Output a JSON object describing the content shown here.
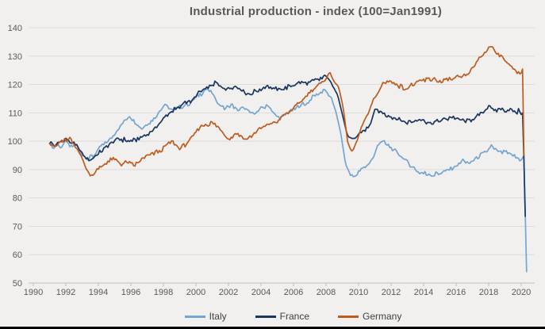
{
  "chart_data": {
    "type": "line",
    "title": "Industrial production - index (100=Jan1991)",
    "xlabel": "",
    "ylabel": "",
    "grid": "horizontal",
    "legend_position": "bottom",
    "x_axis": {
      "min": 1990,
      "max": 2020.6,
      "ticks": [
        1990,
        1992,
        1994,
        1996,
        1998,
        2000,
        2002,
        2004,
        2006,
        2008,
        2010,
        2012,
        2014,
        2016,
        2018,
        2020
      ]
    },
    "y_axis": {
      "min": 50,
      "max": 140,
      "ticks": [
        50,
        60,
        70,
        80,
        90,
        100,
        110,
        120,
        130,
        140
      ]
    },
    "series": [
      {
        "name": "Italy",
        "color": "#74a5d1",
        "points": [
          [
            1991.0,
            99.5
          ],
          [
            1991.25,
            97.3
          ],
          [
            1991.5,
            98.8
          ],
          [
            1991.75,
            97.8
          ],
          [
            1992.0,
            100.2
          ],
          [
            1992.3,
            97.8
          ],
          [
            1992.6,
            99.0
          ],
          [
            1993.0,
            95.2
          ],
          [
            1993.4,
            93.8
          ],
          [
            1993.8,
            95.5
          ],
          [
            1994.1,
            98.0
          ],
          [
            1994.5,
            99.5
          ],
          [
            1994.85,
            101.2
          ],
          [
            1995.3,
            105.0
          ],
          [
            1995.9,
            108.8
          ],
          [
            1996.3,
            106.3
          ],
          [
            1996.7,
            104.4
          ],
          [
            1997.2,
            106.8
          ],
          [
            1997.6,
            109.0
          ],
          [
            1997.9,
            111.8
          ],
          [
            1998.15,
            113.2
          ],
          [
            1998.45,
            110.7
          ],
          [
            1998.8,
            111.5
          ],
          [
            1999.25,
            112.5
          ],
          [
            1999.6,
            113.2
          ],
          [
            2000.0,
            115.5
          ],
          [
            2000.4,
            117.0
          ],
          [
            2000.65,
            118.4
          ],
          [
            2001.0,
            116.8
          ],
          [
            2001.4,
            113.0
          ],
          [
            2001.8,
            111.5
          ],
          [
            2002.2,
            112.8
          ],
          [
            2002.6,
            110.8
          ],
          [
            2003.0,
            111.8
          ],
          [
            2003.4,
            109.8
          ],
          [
            2003.8,
            110.5
          ],
          [
            2004.1,
            111.8
          ],
          [
            2004.5,
            112.2
          ],
          [
            2004.9,
            109.0
          ],
          [
            2005.2,
            108.3
          ],
          [
            2005.6,
            110.0
          ],
          [
            2006.0,
            111.0
          ],
          [
            2006.4,
            112.8
          ],
          [
            2006.8,
            113.3
          ],
          [
            2007.2,
            115.8
          ],
          [
            2007.6,
            116.8
          ],
          [
            2007.9,
            118.3
          ],
          [
            2008.1,
            116.5
          ],
          [
            2008.35,
            114.8
          ],
          [
            2008.6,
            110.5
          ],
          [
            2008.9,
            103.0
          ],
          [
            2009.2,
            92.0
          ],
          [
            2009.5,
            88.0
          ],
          [
            2009.8,
            87.8
          ],
          [
            2010.1,
            89.5
          ],
          [
            2010.5,
            91.3
          ],
          [
            2010.9,
            94.0
          ],
          [
            2011.2,
            99.0
          ],
          [
            2011.45,
            100.4
          ],
          [
            2011.7,
            99.0
          ],
          [
            2012.0,
            97.5
          ],
          [
            2012.4,
            95.8
          ],
          [
            2012.8,
            93.8
          ],
          [
            2013.2,
            91.5
          ],
          [
            2013.7,
            89.2
          ],
          [
            2014.1,
            88.6
          ],
          [
            2014.5,
            88.0
          ],
          [
            2014.9,
            88.6
          ],
          [
            2015.3,
            89.3
          ],
          [
            2015.7,
            90.2
          ],
          [
            2016.1,
            91.8
          ],
          [
            2016.45,
            93.3
          ],
          [
            2016.75,
            91.8
          ],
          [
            2017.1,
            93.5
          ],
          [
            2017.5,
            95.2
          ],
          [
            2017.9,
            96.3
          ],
          [
            2018.15,
            98.7
          ],
          [
            2018.4,
            96.8
          ],
          [
            2018.7,
            95.8
          ],
          [
            2019.0,
            96.5
          ],
          [
            2019.3,
            95.3
          ],
          [
            2019.6,
            94.6
          ],
          [
            2019.9,
            93.8
          ],
          [
            2020.08,
            94.0
          ],
          [
            2020.17,
            95.0
          ],
          [
            2020.33,
            54.0
          ]
        ]
      },
      {
        "name": "France",
        "color": "#1c3560",
        "points": [
          [
            1991.0,
            99.8
          ],
          [
            1991.3,
            98.3
          ],
          [
            1991.6,
            99.5
          ],
          [
            1992.0,
            100.6
          ],
          [
            1992.4,
            99.6
          ],
          [
            1992.8,
            97.6
          ],
          [
            1993.2,
            94.0
          ],
          [
            1993.5,
            93.4
          ],
          [
            1993.8,
            94.6
          ],
          [
            1994.2,
            96.6
          ],
          [
            1994.6,
            98.4
          ],
          [
            1995.0,
            100.2
          ],
          [
            1995.4,
            100.8
          ],
          [
            1995.8,
            100.0
          ],
          [
            1996.2,
            100.3
          ],
          [
            1996.6,
            101.3
          ],
          [
            1997.0,
            102.3
          ],
          [
            1997.5,
            104.6
          ],
          [
            1998.0,
            108.0
          ],
          [
            1998.4,
            110.2
          ],
          [
            1998.7,
            111.2
          ],
          [
            1999.0,
            111.6
          ],
          [
            1999.3,
            114.2
          ],
          [
            1999.7,
            113.8
          ],
          [
            2000.1,
            116.6
          ],
          [
            2000.5,
            118.0
          ],
          [
            2000.9,
            119.4
          ],
          [
            2001.2,
            120.5
          ],
          [
            2001.6,
            119.0
          ],
          [
            2002.0,
            118.4
          ],
          [
            2002.4,
            119.6
          ],
          [
            2002.8,
            118.2
          ],
          [
            2003.2,
            116.4
          ],
          [
            2003.6,
            117.4
          ],
          [
            2004.0,
            118.4
          ],
          [
            2004.4,
            119.6
          ],
          [
            2004.8,
            118.4
          ],
          [
            2005.2,
            118.2
          ],
          [
            2005.6,
            119.0
          ],
          [
            2006.0,
            119.8
          ],
          [
            2006.4,
            120.6
          ],
          [
            2006.8,
            120.2
          ],
          [
            2007.2,
            121.2
          ],
          [
            2007.6,
            121.8
          ],
          [
            2008.0,
            123.0
          ],
          [
            2008.35,
            120.2
          ],
          [
            2008.7,
            116.6
          ],
          [
            2009.0,
            109.5
          ],
          [
            2009.3,
            102.3
          ],
          [
            2009.55,
            100.3
          ],
          [
            2009.9,
            101.8
          ],
          [
            2010.3,
            103.6
          ],
          [
            2010.7,
            105.4
          ],
          [
            2011.0,
            111.2
          ],
          [
            2011.35,
            110.0
          ],
          [
            2011.7,
            109.3
          ],
          [
            2012.1,
            108.3
          ],
          [
            2012.5,
            107.6
          ],
          [
            2012.9,
            106.6
          ],
          [
            2013.3,
            107.0
          ],
          [
            2013.7,
            107.7
          ],
          [
            2014.1,
            106.8
          ],
          [
            2014.5,
            106.2
          ],
          [
            2014.9,
            107.0
          ],
          [
            2015.3,
            107.8
          ],
          [
            2015.7,
            108.4
          ],
          [
            2016.1,
            107.8
          ],
          [
            2016.5,
            107.2
          ],
          [
            2016.9,
            107.6
          ],
          [
            2017.3,
            108.7
          ],
          [
            2017.7,
            110.3
          ],
          [
            2018.05,
            112.8
          ],
          [
            2018.35,
            110.6
          ],
          [
            2018.7,
            111.5
          ],
          [
            2019.0,
            110.5
          ],
          [
            2019.3,
            111.0
          ],
          [
            2019.6,
            110.4
          ],
          [
            2019.9,
            110.5
          ],
          [
            2020.1,
            109.8
          ],
          [
            2020.25,
            73.5
          ]
        ]
      },
      {
        "name": "Germany",
        "color": "#bd5c1f",
        "points": [
          [
            1991.0,
            99.6
          ],
          [
            1991.3,
            98.0
          ],
          [
            1991.7,
            99.8
          ],
          [
            1992.0,
            100.6
          ],
          [
            1992.25,
            100.9
          ],
          [
            1992.6,
            97.8
          ],
          [
            1992.9,
            95.5
          ],
          [
            1993.2,
            91.0
          ],
          [
            1993.55,
            87.5
          ],
          [
            1993.9,
            89.8
          ],
          [
            1994.2,
            91.0
          ],
          [
            1994.6,
            93.0
          ],
          [
            1995.0,
            93.6
          ],
          [
            1995.4,
            91.7
          ],
          [
            1995.8,
            92.8
          ],
          [
            1996.2,
            91.5
          ],
          [
            1996.6,
            93.3
          ],
          [
            1997.0,
            94.8
          ],
          [
            1997.4,
            95.8
          ],
          [
            1997.8,
            96.2
          ],
          [
            1998.2,
            98.8
          ],
          [
            1998.6,
            99.6
          ],
          [
            1999.0,
            97.4
          ],
          [
            1999.4,
            99.0
          ],
          [
            1999.8,
            101.8
          ],
          [
            2000.3,
            105.4
          ],
          [
            2000.7,
            106.0
          ],
          [
            2001.05,
            106.5
          ],
          [
            2001.4,
            104.8
          ],
          [
            2001.8,
            102.0
          ],
          [
            2002.1,
            100.6
          ],
          [
            2002.45,
            103.0
          ],
          [
            2002.8,
            101.8
          ],
          [
            2003.1,
            100.4
          ],
          [
            2003.45,
            102.0
          ],
          [
            2003.8,
            104.2
          ],
          [
            2004.2,
            105.0
          ],
          [
            2004.6,
            106.2
          ],
          [
            2005.0,
            106.6
          ],
          [
            2005.4,
            109.0
          ],
          [
            2005.8,
            110.4
          ],
          [
            2006.2,
            112.8
          ],
          [
            2006.6,
            114.8
          ],
          [
            2007.0,
            117.2
          ],
          [
            2007.4,
            119.2
          ],
          [
            2007.8,
            121.0
          ],
          [
            2008.05,
            122.8
          ],
          [
            2008.25,
            123.9
          ],
          [
            2008.5,
            121.5
          ],
          [
            2008.8,
            118.5
          ],
          [
            2009.05,
            112.0
          ],
          [
            2009.35,
            99.0
          ],
          [
            2009.6,
            96.3
          ],
          [
            2009.9,
            100.0
          ],
          [
            2010.2,
            105.5
          ],
          [
            2010.6,
            110.0
          ],
          [
            2010.9,
            114.5
          ],
          [
            2011.2,
            117.0
          ],
          [
            2011.55,
            121.3
          ],
          [
            2011.9,
            121.0
          ],
          [
            2012.3,
            120.2
          ],
          [
            2012.7,
            119.0
          ],
          [
            2012.95,
            118.3
          ],
          [
            2013.2,
            119.5
          ],
          [
            2013.6,
            120.5
          ],
          [
            2014.0,
            121.5
          ],
          [
            2014.3,
            121.8
          ],
          [
            2014.7,
            121.9
          ],
          [
            2015.1,
            121.0
          ],
          [
            2015.5,
            121.6
          ],
          [
            2015.9,
            122.2
          ],
          [
            2016.3,
            122.6
          ],
          [
            2016.7,
            123.3
          ],
          [
            2017.1,
            126.6
          ],
          [
            2017.5,
            129.8
          ],
          [
            2017.9,
            132.0
          ],
          [
            2018.1,
            133.6
          ],
          [
            2018.35,
            132.4
          ],
          [
            2018.6,
            130.6
          ],
          [
            2018.9,
            129.3
          ],
          [
            2019.2,
            127.5
          ],
          [
            2019.5,
            125.6
          ],
          [
            2019.8,
            124.3
          ],
          [
            2020.0,
            124.6
          ],
          [
            2020.08,
            126.6
          ],
          [
            2020.17,
            95.0
          ]
        ]
      }
    ],
    "colors": {
      "title_text": "#595959",
      "axis_text": "#595959",
      "gridline": "#dcdbda",
      "axis_line": "#c0bfbe",
      "legend_text": "#404040",
      "background": "#f1f0ee",
      "bottom_border": "#000000"
    }
  }
}
